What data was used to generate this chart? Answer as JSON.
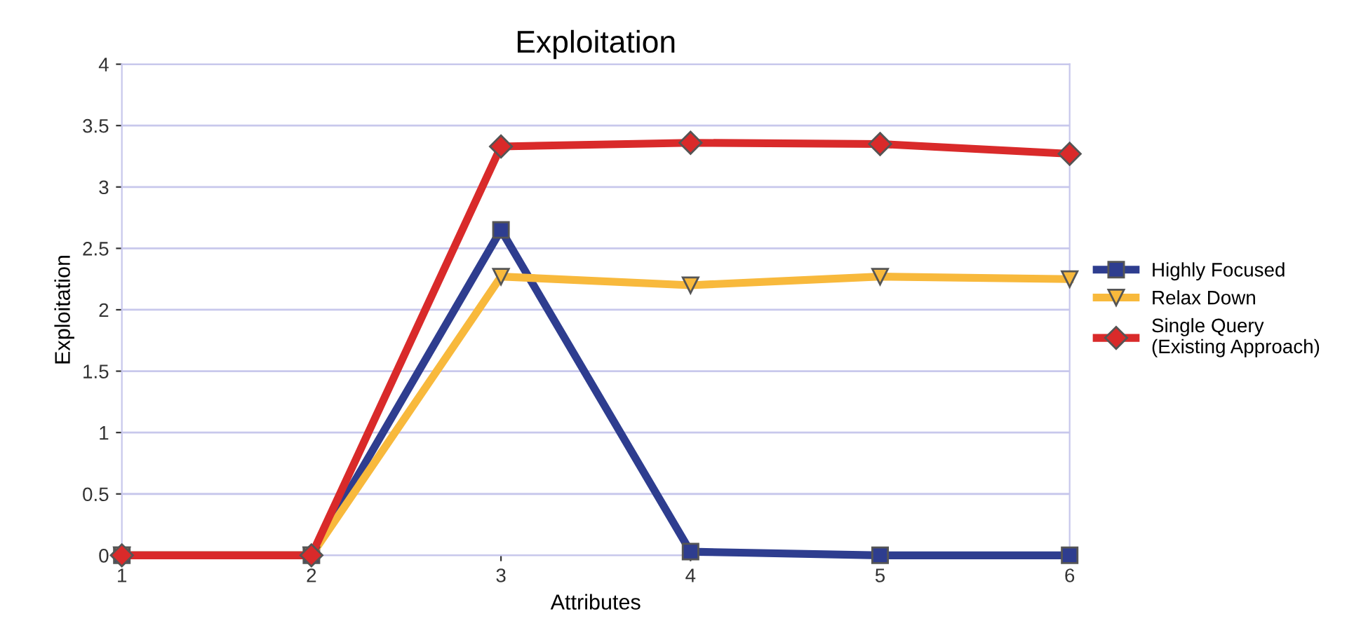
{
  "chart_data": {
    "type": "line",
    "title": "Exploitation",
    "xlabel": "Attributes",
    "ylabel": "Exploitation",
    "x": [
      1,
      2,
      3,
      4,
      5,
      6
    ],
    "xlim": [
      1,
      6
    ],
    "xticks": [
      1,
      2,
      3,
      4,
      5,
      6
    ],
    "ylim": [
      0,
      4
    ],
    "yticks": [
      0,
      0.5,
      1,
      1.5,
      2,
      2.5,
      3,
      3.5,
      4
    ],
    "grid": "y",
    "legend": "right",
    "series": [
      {
        "name": "Highly Focused",
        "color": "#2e3d8f",
        "marker": "square",
        "values": [
          0,
          0,
          2.65,
          0.03,
          0,
          0
        ]
      },
      {
        "name": "Relax Down",
        "color": "#f8b93c",
        "marker": "triangle",
        "values": [
          0,
          0,
          2.27,
          2.2,
          2.27,
          2.25
        ]
      },
      {
        "name": "Single Query (Existing Approach)",
        "color": "#d92a2a",
        "marker": "diamond",
        "values": [
          0,
          0,
          3.33,
          3.36,
          3.35,
          3.27
        ]
      }
    ]
  }
}
